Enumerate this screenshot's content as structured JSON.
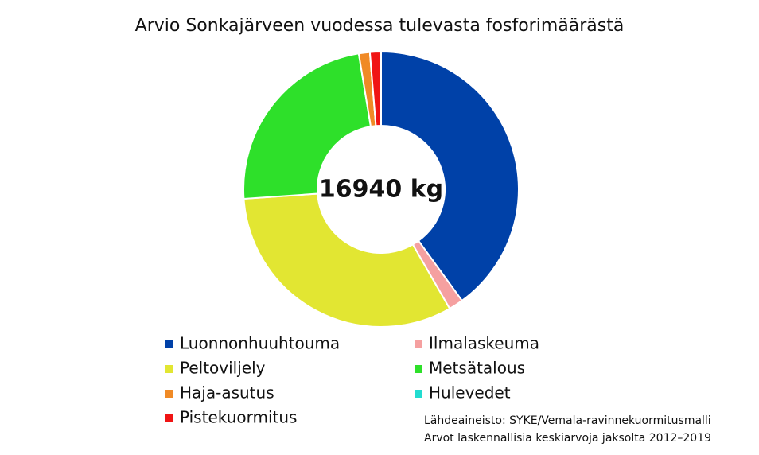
{
  "chart_data": {
    "type": "donut",
    "title": "Arvio Sonkajärveen vuodessa tulevasta fosforimäärästä",
    "center_label": "16940 kg",
    "categories": [
      "Luonnonhuuhtouma",
      "Ilmalaskeuma",
      "Peltoviljely",
      "Metsätalous",
      "Haja-asutus",
      "Hulevedet",
      "Pistekuormitus"
    ],
    "values": [
      40,
      1.7,
      32.2,
      23.5,
      1.3,
      0,
      1.3
    ],
    "colors": [
      "#0041a8",
      "#f5a0a0",
      "#e2e632",
      "#2ee02a",
      "#f08a26",
      "#22dcd0",
      "#f01414"
    ],
    "notes": [
      "Lähdeaineisto: SYKE/Vemala-ravinnekuormitusmalli",
      "Arvot laskennallisia keskiarvoja jaksolta 2012–2019"
    ]
  }
}
